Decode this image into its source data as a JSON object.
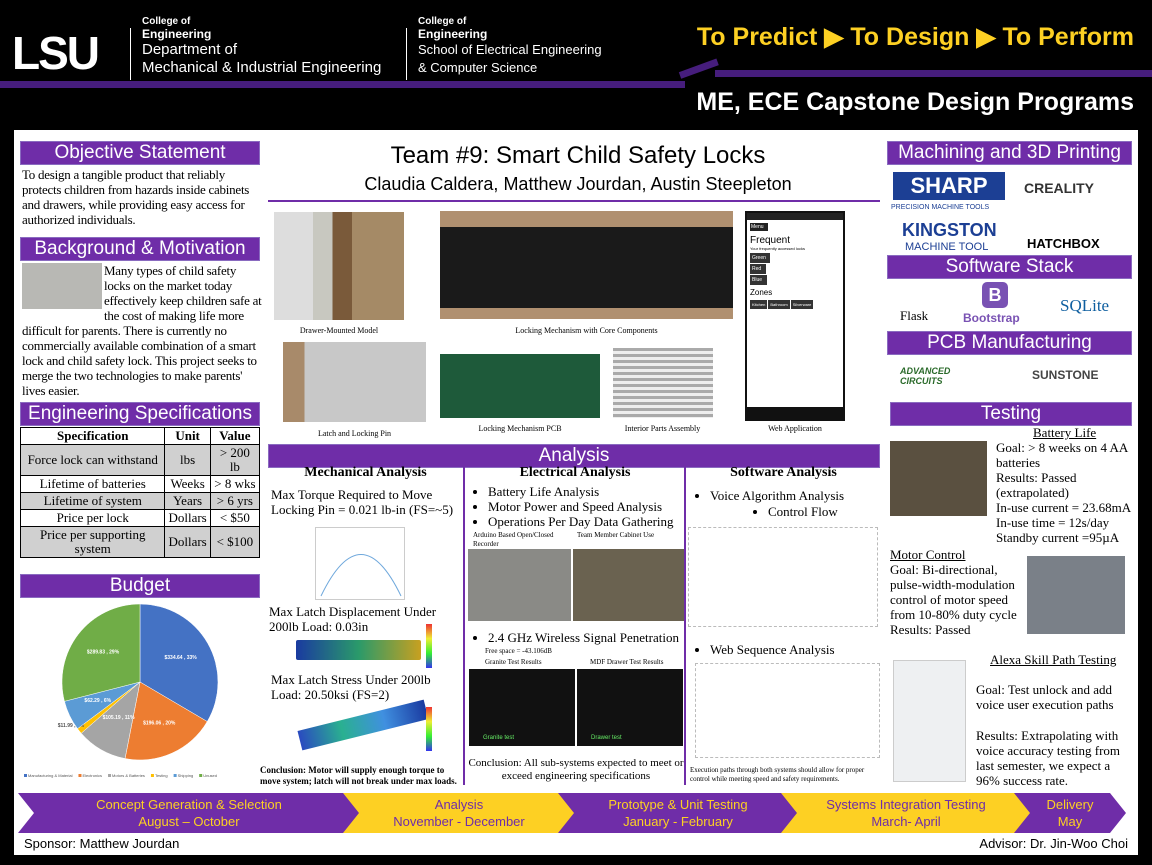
{
  "header": {
    "logo": "LSU",
    "college1": "College of",
    "engineering1": "Engineering",
    "dept1_line1": "Department of",
    "dept1_line2": "Mechanical & Industrial Engineering",
    "college2": "College of",
    "engineering2": "Engineering",
    "dept2_line1": "School of Electrical Engineering",
    "dept2_line2": "& Computer Science",
    "slogan": "To Predict ▶ To Design ▶ To Perform",
    "program": "ME, ECE Capstone Design Programs"
  },
  "title": {
    "team": "Team #9: Smart Child Safety Locks",
    "members": "Claudia Caldera, Matthew Jourdan, Austin Steepleton"
  },
  "objective": {
    "heading": "Objective Statement",
    "text": "To design a tangible product that reliably protects children from hazards inside cabinets and drawers, while providing easy access for authorized individuals."
  },
  "background": {
    "heading": "Background & Motivation",
    "text": "Many types of child safety locks on the market today effectively keep children safe at the cost of making life more difficult for parents. There is currently no commercially available combination of a smart lock and child safety lock. This project seeks to merge the two technologies to make parents' lives easier."
  },
  "specs": {
    "heading": "Engineering Specifications",
    "columns": [
      "Specification",
      "Unit",
      "Value"
    ],
    "rows": [
      [
        "Force lock can withstand",
        "lbs",
        "> 200 lb"
      ],
      [
        "Lifetime of batteries",
        "Weeks",
        "> 8 wks"
      ],
      [
        "Lifetime of system",
        "Years",
        "> 6 yrs"
      ],
      [
        "Price per lock",
        "Dollars",
        "< $50"
      ],
      [
        "Price per supporting system",
        "Dollars",
        "< $100"
      ]
    ]
  },
  "budget": {
    "heading": "Budget",
    "slices": [
      {
        "label": "Manufacturing & Material",
        "value": 334.64,
        "text": "$334.64 , 33%",
        "color": "#4472c4"
      },
      {
        "label": "Electronics",
        "value": 196.06,
        "text": "$196.06 , 20%",
        "color": "#ed7d31"
      },
      {
        "label": "Motors & Batteries",
        "value": 105.19,
        "text": "$105.19 , 11%",
        "color": "#a5a5a5"
      },
      {
        "label": "Testing",
        "value": 11.99,
        "text": "$11.99 , 1%",
        "color": "#ffc000"
      },
      {
        "label": "Shipping",
        "value": 62.29,
        "text": "$62.29 , 6%",
        "color": "#5b9bd5"
      },
      {
        "label": "Unused",
        "value": 289.83,
        "text": "$289.83 , 29%",
        "color": "#70ad47"
      }
    ]
  },
  "gallery": {
    "captions": [
      "Drawer-Mounted Model",
      "Locking Mechanism with Core Components",
      "Latch and Locking Pin",
      "Locking Mechanism PCB",
      "Interior Parts Assembly",
      "Web Application"
    ],
    "app": {
      "menu": "Menu",
      "frequent": "Frequent",
      "sub": "Your frequently accessed locks",
      "locks": [
        "Green",
        "Red",
        "Blue"
      ],
      "zones_title": "Zones",
      "zones": [
        "Kitchen",
        "Bathroom",
        "Silverware"
      ]
    }
  },
  "analysis": {
    "heading": "Analysis",
    "mech": {
      "title": "Mechanical Analysis",
      "torque": "Max Torque Required to Move Locking Pin = 0.021 lb-in (FS=~5)",
      "disp": "Max Latch Displacement Under 200lb Load: 0.03in",
      "stress": "Max Latch Stress Under 200lb Load: 20.50ksi (FS=2)",
      "conclusion": "Conclusion: Motor will supply enough torque to move system; latch will not break under max loads."
    },
    "elec": {
      "title": "Electrical Analysis",
      "bullets": [
        "Battery Life Analysis",
        "Motor Power and Speed Analysis",
        "Operations Per Day Data Gathering"
      ],
      "sub1": "Arduino Based Open/Closed Recorder",
      "sub2": "Team Member Cabinet Use",
      "wireless": "2.4 GHz Wireless Signal Penetration",
      "free": "Free space = -43.106dB",
      "granite": "Granite Test Results",
      "mdf": "MDF Drawer Test Results",
      "granite_label": "Granite test",
      "drawer_label": "Drawer test",
      "conclusion": "Conclusion: All sub-systems expected to meet or exceed engineering specifications"
    },
    "soft": {
      "title": "Software Analysis",
      "voice": "Voice Algorithm Analysis",
      "flow": "Control Flow",
      "web": "Web Sequence Analysis",
      "conclusion": "Execution paths through both systems should allow for proper control while meeting speed and safety requirements."
    }
  },
  "machining": {
    "heading": "Machining and 3D Printing",
    "logos": [
      "SHARP",
      "PRECISION MACHINE TOOLS",
      "CREALITY",
      "KINGSTON",
      "MACHINE TOOL",
      "HATCHBOX"
    ]
  },
  "software": {
    "heading": "Software Stack",
    "logos": [
      "Flask",
      "Bootstrap",
      "SQLite"
    ]
  },
  "pcb": {
    "heading": "PCB Manufacturing",
    "logos": [
      "ADVANCED CIRCUITS",
      "SUNSTONE"
    ]
  },
  "testing": {
    "heading": "Testing",
    "battery_title": "Battery Life",
    "battery": [
      "Goal: > 8 weeks on 4 AA batteries",
      "Results: Passed (extrapolated)",
      "In-use current = 23.68mA",
      "In-use time = 12s/day",
      "Standby current =95µA"
    ],
    "motor_title": "Motor Control",
    "motor": "Goal: Bi-directional, pulse-width-modulation control of motor speed from 10-80% duty cycle",
    "motor_result": "Results: Passed",
    "alexa_title": "Alexa Skill Path Testing",
    "alexa_goal": "Goal: Test unlock and add voice user execution paths",
    "alexa_result": "Results: Extrapolating with voice accuracy testing from last semester, we expect a 96% success rate."
  },
  "timeline": [
    {
      "phase": "Concept Generation & Selection",
      "dates": "August – October"
    },
    {
      "phase": "Analysis",
      "dates": "November - December"
    },
    {
      "phase": "Prototype & Unit Testing",
      "dates": "January - February"
    },
    {
      "phase": "Systems Integration Testing",
      "dates": "March- April"
    },
    {
      "phase": "Delivery",
      "dates": "May"
    }
  ],
  "footer": {
    "sponsor": "Sponsor: Matthew Jourdan",
    "advisor": "Advisor: Dr. Jin-Woo Choi"
  }
}
